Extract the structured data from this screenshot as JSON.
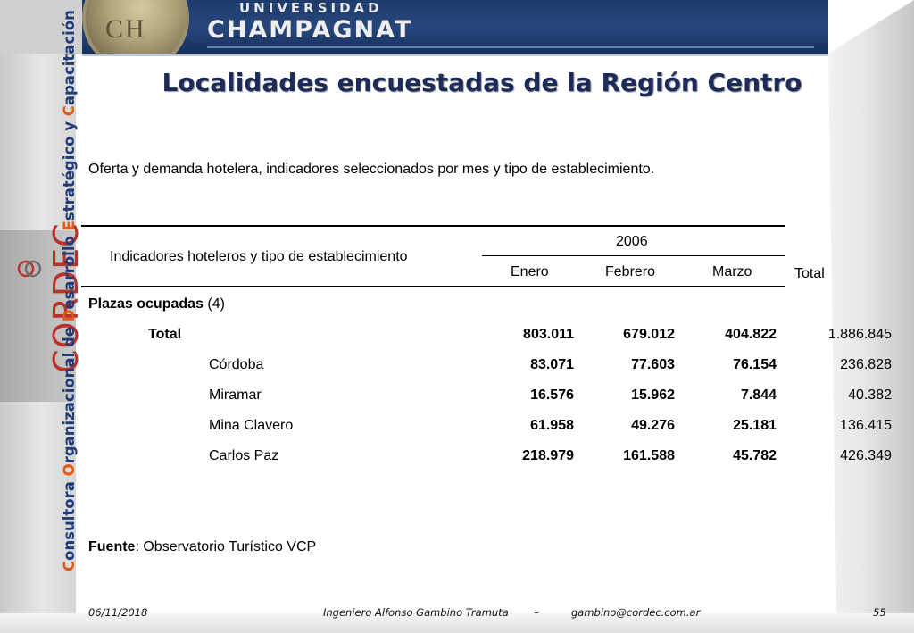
{
  "header": {
    "university_top": "UNIVERSIDAD",
    "university_main": "CHAMPAGNAT"
  },
  "sidebar": {
    "vertical_label": [
      {
        "cap": "C",
        "rest": "onsultora "
      },
      {
        "cap": "O",
        "rest": "rganizacional de "
      },
      {
        "cap": "D",
        "rest": "esarrollo "
      },
      {
        "cap": "E",
        "rest": "stratégico y "
      },
      {
        "cap": "C",
        "rest": "apacitación"
      }
    ],
    "logo_text": "CORDEC"
  },
  "slide": {
    "title": "Localidades encuestadas de la Región Centro",
    "subtitle": "Oferta y demanda hotelera, indicadores seleccionados por mes y tipo de establecimiento."
  },
  "table": {
    "header_indicator": "Indicadores hoteleros y tipo de establecimiento",
    "header_year": "2006",
    "months": [
      "Enero",
      "Febrero",
      "Marzo"
    ],
    "header_total": "Total",
    "section_label": "Plazas ocupadas",
    "section_note": "(4)",
    "rows": [
      {
        "label": "Total",
        "enero": "803.011",
        "febrero": "679.012",
        "marzo": "404.822",
        "total": "1.886.845"
      },
      {
        "label": "Córdoba",
        "enero": "83.071",
        "febrero": "77.603",
        "marzo": "76.154",
        "total": "236.828"
      },
      {
        "label": "Miramar",
        "enero": "16.576",
        "febrero": "15.962",
        "marzo": "7.844",
        "total": "40.382"
      },
      {
        "label": "Mina Clavero",
        "enero": "61.958",
        "febrero": "49.276",
        "marzo": "25.181",
        "total": "136.415"
      },
      {
        "label": "Carlos Paz",
        "enero": "218.979",
        "febrero": "161.588",
        "marzo": "45.782",
        "total": "426.349"
      }
    ]
  },
  "source": {
    "label": "Fuente",
    "text": ": Observatorio Turístico VCP"
  },
  "footer": {
    "date": "06/11/2018",
    "author": "Ingeniero Alfonso Gambino Tramuta",
    "separator": "–",
    "email": "gambino@cordec.com.ar",
    "page": "55"
  },
  "colors": {
    "title": "#1c2b5a",
    "vertical_label": "#1f3b78",
    "vertical_caps": "#e05a14",
    "logo": "#b8322a",
    "banner": "#1d3a6b"
  }
}
